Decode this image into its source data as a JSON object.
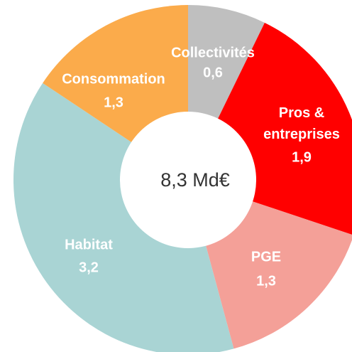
{
  "chart_data": {
    "type": "donut",
    "center_label": "8,3 Md€",
    "categories": [
      "Collectivités",
      "Pros & entreprises",
      "PGE",
      "Habitat",
      "Consommation"
    ],
    "values": [
      0.6,
      1.9,
      1.3,
      3.2,
      1.3
    ],
    "value_labels": [
      "0,6",
      "1,9",
      "1,3",
      "3,2",
      "1,3"
    ],
    "colors": [
      "#bfbfbf",
      "#ff0000",
      "#f4a098",
      "#a9d4d4",
      "#fbab4b"
    ]
  }
}
